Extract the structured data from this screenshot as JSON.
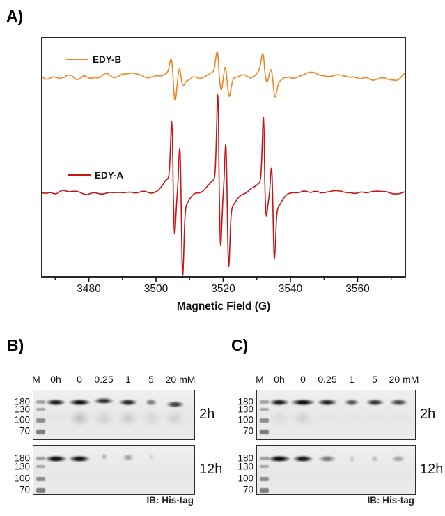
{
  "figure": {
    "panels": {
      "a": "A)",
      "b": "B)",
      "c": "C)"
    }
  },
  "chart_data": {
    "type": "line",
    "title": "",
    "xlabel": "Magnetic Field (G)",
    "ylabel": "",
    "x_range": [
      3466,
      3574.2
    ],
    "x_ticks_major": [
      3480,
      3500,
      3520,
      3540,
      3560
    ],
    "x_ticks_minor": [
      3470,
      3490,
      3510,
      3530,
      3550,
      3570
    ],
    "grid": false,
    "legend_position": "inside-left",
    "series": [
      {
        "name": "EDY-B",
        "color": "#EE8422",
        "offset": 1.71,
        "noise": 0.1,
        "seed": 7,
        "lines": [
          {
            "center": 3505.1,
            "width": 0.85,
            "up": 0.26,
            "down": 0.3
          },
          {
            "center": 3507.5,
            "width": 0.85,
            "up": 0.18,
            "down": 0.1
          },
          {
            "center": 3518.8,
            "width": 0.85,
            "up": 0.33,
            "down": 0.2
          },
          {
            "center": 3521.2,
            "width": 0.85,
            "up": 0.21,
            "down": 0.22
          },
          {
            "center": 3532.4,
            "width": 0.9,
            "up": 0.26,
            "down": 0.12
          },
          {
            "center": 3534.8,
            "width": 0.9,
            "up": 0.16,
            "down": 0.22
          },
          {
            "center": 3505.8,
            "width": 3.0,
            "up": 0.05,
            "down": 0.05
          },
          {
            "center": 3519.5,
            "width": 3.0,
            "up": 0.06,
            "down": 0.06
          },
          {
            "center": 3533.0,
            "width": 3.0,
            "up": 0.05,
            "down": 0.05
          }
        ]
      },
      {
        "name": "EDY-A",
        "color": "#C41414",
        "offset": 0,
        "noise": 0.055,
        "seed": 3,
        "lines": [
          {
            "center": 3505.1,
            "width": 0.62,
            "up": 0.9,
            "down": 0.67
          },
          {
            "center": 3507.5,
            "width": 0.62,
            "up": 0.8,
            "down": 1.04
          },
          {
            "center": 3518.8,
            "width": 0.62,
            "up": 1.31,
            "down": 0.86
          },
          {
            "center": 3521.2,
            "width": 0.62,
            "up": 0.85,
            "down": 0.88
          },
          {
            "center": 3532.4,
            "width": 0.62,
            "up": 1.0,
            "down": 0.37
          },
          {
            "center": 3534.8,
            "width": 0.62,
            "up": 0.57,
            "down": 0.73
          },
          {
            "center": 3506.0,
            "width": 3.2,
            "up": 0.2,
            "down": 0.22
          },
          {
            "center": 3519.8,
            "width": 3.2,
            "up": 0.18,
            "down": 0.22
          },
          {
            "center": 3533.2,
            "width": 3.2,
            "up": 0.15,
            "down": 0.25
          }
        ]
      }
    ]
  },
  "blots": {
    "lane_headers": [
      "M",
      "0h",
      "0",
      "0.25",
      "1",
      "5",
      "20 mM"
    ],
    "mw_labels": [
      "180",
      "130",
      "100",
      "70"
    ],
    "ib_label": "IB: His-tag",
    "panels": [
      {
        "id": "B",
        "rows": [
          {
            "time": "2h",
            "bands": [
              0.92,
              0.97,
              0.82,
              0.88,
              0.5,
              0.75
            ],
            "widths": [
              1.0,
              1.1,
              1.0,
              0.95,
              0.62,
              0.9
            ],
            "dy": [
              0,
              0,
              -2,
              0,
              0,
              3
            ],
            "smears": [
              0.07,
              0.6,
              0.33,
              0.42,
              0.25,
              0.33
            ]
          },
          {
            "time": "12h",
            "bands": [
              0.97,
              0.95,
              0.25,
              0.32,
              0.1,
              0
            ],
            "widths": [
              1.1,
              1.05,
              0.3,
              0.55,
              0.25,
              0.2
            ],
            "dy": [
              0,
              0,
              -3,
              -2,
              -3,
              0
            ],
            "smears": [
              0,
              0,
              0,
              0,
              0,
              0
            ]
          }
        ]
      },
      {
        "id": "C",
        "rows": [
          {
            "time": "2h",
            "bands": [
              0.92,
              1.0,
              0.87,
              0.68,
              0.82,
              0.72
            ],
            "widths": [
              1.0,
              1.2,
              1.0,
              0.75,
              0.9,
              0.9
            ],
            "dy": [
              0,
              0,
              0,
              0,
              0,
              0
            ],
            "smears": [
              0.18,
              0.32,
              0.06,
              0.05,
              0.05,
              0.06
            ]
          },
          {
            "time": "12h",
            "bands": [
              0.97,
              0.92,
              0.48,
              0.15,
              0.2,
              0.3
            ],
            "widths": [
              1.15,
              1.0,
              0.85,
              0.3,
              0.35,
              0.65
            ],
            "dy": [
              0,
              0,
              0,
              0,
              0,
              0
            ],
            "smears": [
              0,
              0,
              0,
              0,
              0,
              0
            ]
          }
        ]
      }
    ]
  }
}
